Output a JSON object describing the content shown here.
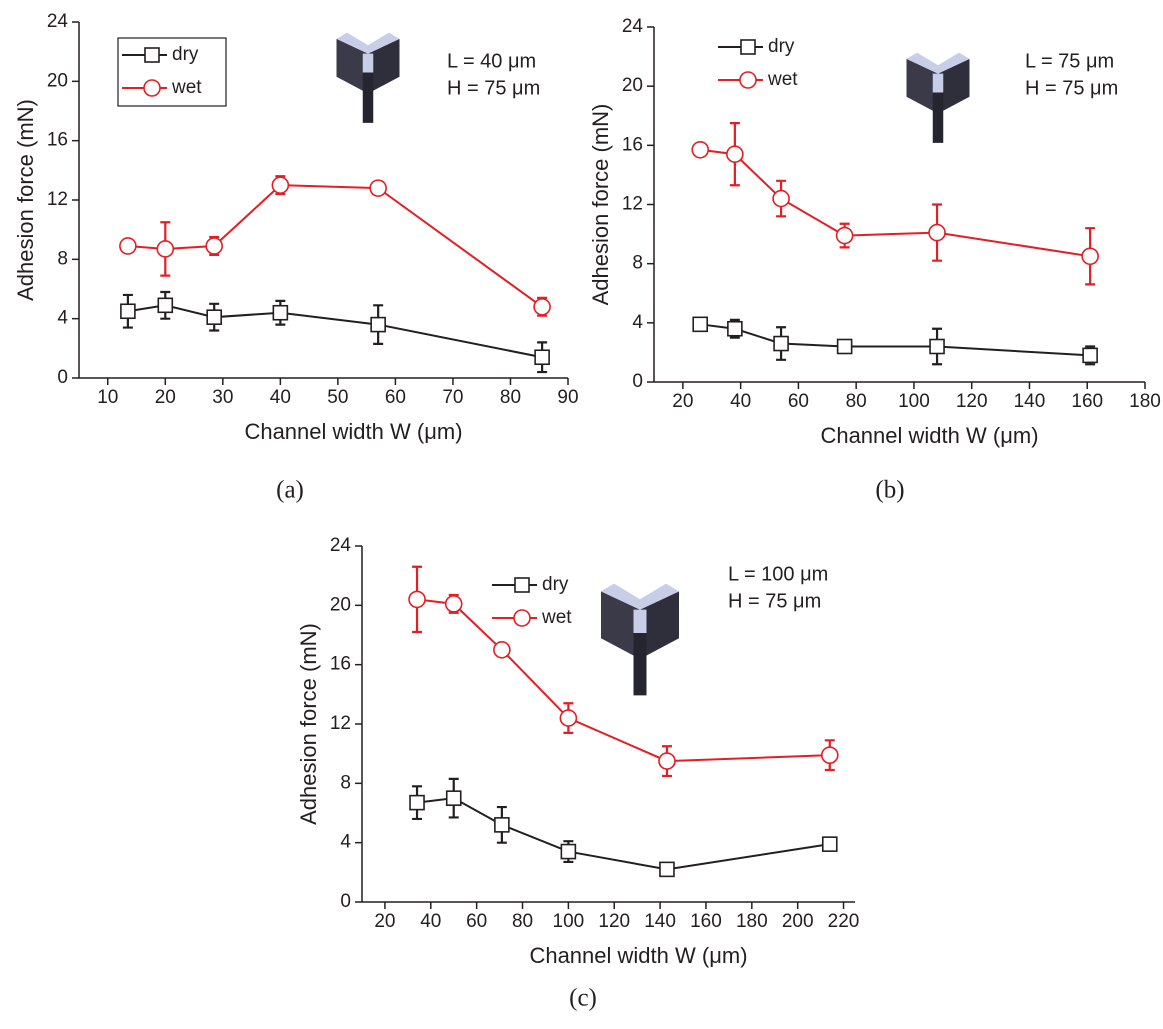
{
  "chart_data": [
    {
      "type": "line",
      "x_label": "Channel width W (μm)",
      "y_label": "Adhesion force (mN)",
      "caption": "(a)",
      "annotations": [
        "L = 40 μm",
        "H = 75 μm"
      ],
      "legend": "upper left",
      "legend_frame": true,
      "x": [
        13.5,
        20,
        28.5,
        40,
        57,
        85.5
      ],
      "series": [
        {
          "name": "dry",
          "color": "#231f20",
          "marker": "square",
          "values": [
            4.5,
            4.9,
            4.1,
            4.4,
            3.6,
            1.4
          ],
          "errors": [
            1.1,
            0.9,
            0.9,
            0.8,
            1.3,
            1.0
          ]
        },
        {
          "name": "wet",
          "color": "#e31e24",
          "marker": "circle",
          "values": [
            8.9,
            8.7,
            8.9,
            13.0,
            12.8,
            4.8
          ],
          "errors": [
            0.4,
            1.8,
            0.6,
            0.6,
            0.3,
            0.6
          ]
        }
      ],
      "xlim": [
        5,
        90
      ],
      "xticks": [
        10,
        20,
        30,
        40,
        50,
        60,
        70,
        80,
        90
      ],
      "ylim": [
        0,
        24
      ],
      "yticks": [
        0,
        4,
        8,
        12,
        16,
        20,
        24
      ]
    },
    {
      "type": "line",
      "x_label": "Channel width W (μm)",
      "y_label": "Adhesion force (mN)",
      "caption": "(b)",
      "annotations": [
        "L = 75 μm",
        "H = 75 μm"
      ],
      "legend": "upper left",
      "legend_frame": false,
      "x": [
        26,
        38,
        54,
        76,
        108,
        161
      ],
      "series": [
        {
          "name": "dry",
          "color": "#231f20",
          "marker": "square",
          "values": [
            3.9,
            3.6,
            2.6,
            2.4,
            2.4,
            1.8
          ],
          "errors": [
            0.4,
            0.6,
            1.1,
            0.4,
            1.2,
            0.6
          ]
        },
        {
          "name": "wet",
          "color": "#e31e24",
          "marker": "circle",
          "values": [
            15.7,
            15.4,
            12.4,
            9.9,
            10.1,
            8.5
          ],
          "errors": [
            0.4,
            2.1,
            1.2,
            0.8,
            1.9,
            1.9
          ]
        }
      ],
      "xlim": [
        10,
        180
      ],
      "xticks": [
        20,
        40,
        60,
        80,
        100,
        120,
        140,
        160,
        180
      ],
      "ylim": [
        0,
        24
      ],
      "yticks": [
        0,
        4,
        8,
        12,
        16,
        20,
        24
      ]
    },
    {
      "type": "line",
      "x_label": "Channel width W (μm)",
      "y_label": "Adhesion force (mN)",
      "caption": "(c)",
      "annotations": [
        "L = 100 μm",
        "H = 75 μm"
      ],
      "legend": "upper center",
      "legend_frame": false,
      "x": [
        34,
        50,
        71,
        100,
        143,
        214
      ],
      "series": [
        {
          "name": "dry",
          "color": "#231f20",
          "marker": "square",
          "values": [
            6.7,
            7.0,
            5.2,
            3.4,
            2.2,
            3.9
          ],
          "errors": [
            1.1,
            1.3,
            1.2,
            0.7,
            0.2,
            0.3
          ]
        },
        {
          "name": "wet",
          "color": "#e31e24",
          "marker": "circle",
          "values": [
            20.4,
            20.1,
            17.0,
            12.4,
            9.5,
            9.9
          ],
          "errors": [
            2.2,
            0.6,
            0.3,
            1.0,
            1.0,
            1.0
          ]
        }
      ],
      "xlim": [
        10,
        225
      ],
      "xticks": [
        20,
        40,
        60,
        80,
        100,
        120,
        140,
        160,
        180,
        200,
        220
      ],
      "ylim": [
        0,
        24
      ],
      "yticks": [
        0,
        4,
        8,
        12,
        16,
        20,
        24
      ]
    }
  ]
}
